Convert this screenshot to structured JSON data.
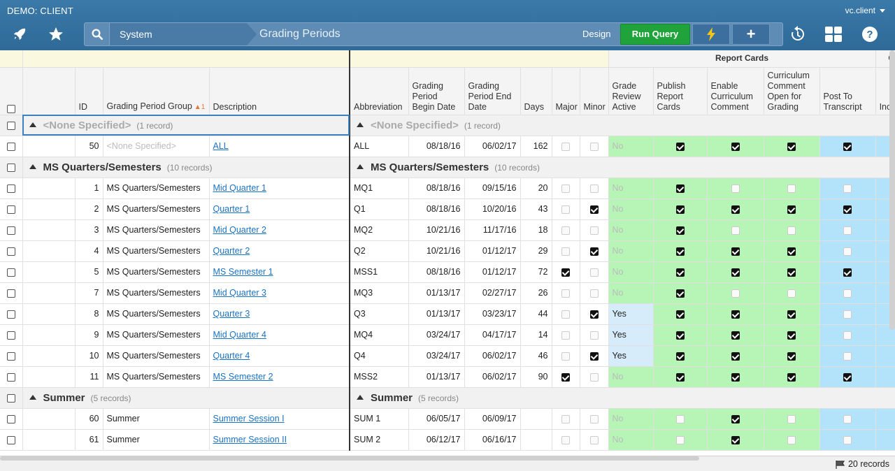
{
  "app": {
    "title": "DEMO: CLIENT",
    "user": "vc.client"
  },
  "breadcrumb": {
    "root": "System",
    "page": "Grading Periods"
  },
  "toolbar": {
    "design_label": "Design",
    "run_label": "Run Query",
    "plus_label": "+"
  },
  "columns": {
    "id": "ID",
    "group": "Grading Period Group",
    "group_sort": "1",
    "description": "Description",
    "abbreviation": "Abbreviation",
    "begin": "Grading Period Begin Date",
    "end": "Grading Period End Date",
    "days": "Days",
    "major": "Major",
    "minor": "Minor",
    "grade_review": "Grade Review Active",
    "publish": "Publish Report Cards",
    "enable_comment": "Enable Curriculum Comment",
    "comment_open": "Curriculum Comment Open for Grading",
    "post": "Post To Transcript",
    "gpa": "Incl GPA"
  },
  "sections": {
    "report_cards": "Report Cards",
    "configuration": "Configuratio"
  },
  "groups": [
    {
      "title": "<None Specified>",
      "count": "(1 record)",
      "rows": [
        {
          "id": "50",
          "group": "<None Specified>",
          "description": "ALL",
          "abbr": "ALL",
          "begin": "08/18/16",
          "end": "06/02/17",
          "days": "162",
          "major": false,
          "minor": false,
          "review": "No",
          "publish": true,
          "enable": true,
          "open": true,
          "post": true
        }
      ]
    },
    {
      "title": "MS Quarters/Semesters",
      "count": "(10 records)",
      "rows": [
        {
          "id": "1",
          "group": "MS Quarters/Semesters",
          "description": "Mid Quarter 1",
          "abbr": "MQ1",
          "begin": "08/18/16",
          "end": "09/15/16",
          "days": "20",
          "major": false,
          "minor": false,
          "review": "No",
          "publish": true,
          "enable": false,
          "open": false,
          "post": false
        },
        {
          "id": "2",
          "group": "MS Quarters/Semesters",
          "description": "Quarter 1",
          "abbr": "Q1",
          "begin": "08/18/16",
          "end": "10/20/16",
          "days": "43",
          "major": false,
          "minor": true,
          "review": "No",
          "publish": true,
          "enable": true,
          "open": true,
          "post": true
        },
        {
          "id": "3",
          "group": "MS Quarters/Semesters",
          "description": "Mid Quarter 2",
          "abbr": "MQ2",
          "begin": "10/21/16",
          "end": "11/17/16",
          "days": "18",
          "major": false,
          "minor": false,
          "review": "No",
          "publish": true,
          "enable": false,
          "open": false,
          "post": false
        },
        {
          "id": "4",
          "group": "MS Quarters/Semesters",
          "description": "Quarter 2",
          "abbr": "Q2",
          "begin": "10/21/16",
          "end": "01/12/17",
          "days": "29",
          "major": false,
          "minor": true,
          "review": "No",
          "publish": true,
          "enable": true,
          "open": true,
          "post": false
        },
        {
          "id": "5",
          "group": "MS Quarters/Semesters",
          "description": "MS Semester 1",
          "abbr": "MSS1",
          "begin": "08/18/16",
          "end": "01/12/17",
          "days": "72",
          "major": true,
          "minor": false,
          "review": "No",
          "publish": true,
          "enable": true,
          "open": true,
          "post": true
        },
        {
          "id": "7",
          "group": "MS Quarters/Semesters",
          "description": "Mid Quarter 3",
          "abbr": "MQ3",
          "begin": "01/13/17",
          "end": "02/27/17",
          "days": "26",
          "major": false,
          "minor": false,
          "review": "No",
          "publish": true,
          "enable": false,
          "open": false,
          "post": false
        },
        {
          "id": "8",
          "group": "MS Quarters/Semesters",
          "description": "Quarter 3",
          "abbr": "Q3",
          "begin": "01/13/17",
          "end": "03/23/17",
          "days": "44",
          "major": false,
          "minor": true,
          "review": "Yes",
          "publish": true,
          "enable": true,
          "open": true,
          "post": false
        },
        {
          "id": "9",
          "group": "MS Quarters/Semesters",
          "description": "Mid Quarter 4",
          "abbr": "MQ4",
          "begin": "03/24/17",
          "end": "04/17/17",
          "days": "14",
          "major": false,
          "minor": false,
          "review": "Yes",
          "publish": true,
          "enable": true,
          "open": true,
          "post": false
        },
        {
          "id": "10",
          "group": "MS Quarters/Semesters",
          "description": "Quarter 4",
          "abbr": "Q4",
          "begin": "03/24/17",
          "end": "06/02/17",
          "days": "46",
          "major": false,
          "minor": true,
          "review": "Yes",
          "publish": true,
          "enable": true,
          "open": true,
          "post": false
        },
        {
          "id": "11",
          "group": "MS Quarters/Semesters",
          "description": "MS Semester 2",
          "abbr": "MSS2",
          "begin": "01/13/17",
          "end": "06/02/17",
          "days": "90",
          "major": true,
          "minor": false,
          "review": "No",
          "publish": true,
          "enable": true,
          "open": true,
          "post": true
        }
      ]
    },
    {
      "title": "Summer",
      "count": "(5 records)",
      "rows": [
        {
          "id": "60",
          "group": "Summer",
          "description": "Summer Session I",
          "abbr": "SUM 1",
          "begin": "06/05/17",
          "end": "06/09/17",
          "days": "",
          "major": false,
          "minor": false,
          "review": "No",
          "publish": false,
          "enable": true,
          "open": false,
          "post": false
        },
        {
          "id": "61",
          "group": "Summer",
          "description": "Summer Session II",
          "abbr": "SUM 2",
          "begin": "06/12/17",
          "end": "06/16/17",
          "days": "",
          "major": false,
          "minor": false,
          "review": "No",
          "publish": false,
          "enable": true,
          "open": false,
          "post": false
        }
      ]
    }
  ],
  "footer": {
    "records": "20 records"
  },
  "colors": {
    "green": "#b6f5b6",
    "blue": "#b3e3fb",
    "run": "#1fa33a",
    "header": "#3a79a8"
  }
}
